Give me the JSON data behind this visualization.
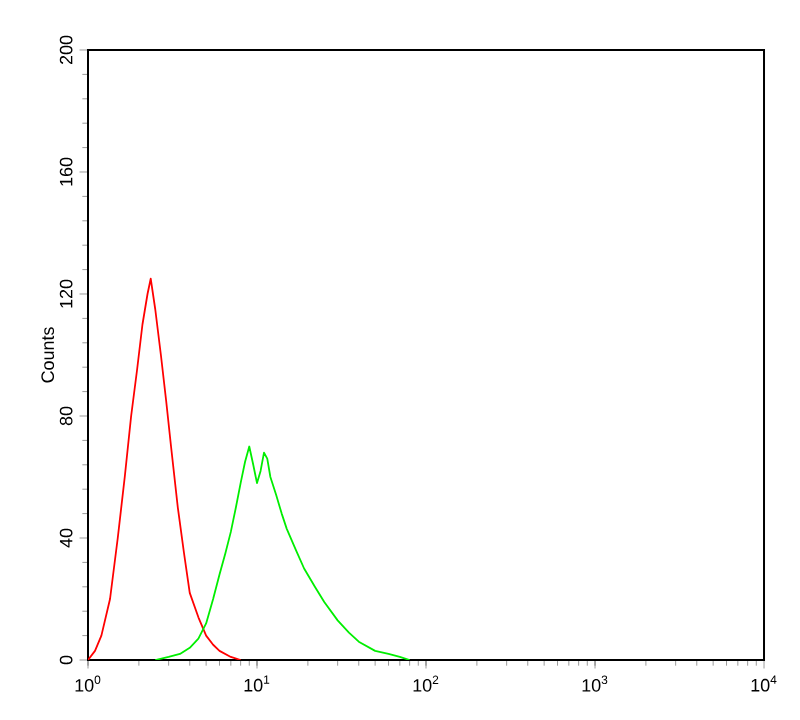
{
  "chart_data": {
    "type": "line",
    "ylabel": "Counts",
    "log": "x",
    "marker": "none",
    "line_style": "solid",
    "xlim": [
      1,
      10000
    ],
    "ylim": [
      0,
      200
    ],
    "xticks": [
      {
        "value": 1,
        "label": "10$^{0}$"
      },
      {
        "value": 10,
        "label": "10$^{1}$"
      },
      {
        "value": 100,
        "label": "10$^{2}$"
      },
      {
        "value": 1000,
        "label": "10$^{3}$"
      },
      {
        "value": 10000,
        "label": "10$^{4}$"
      }
    ],
    "yticks": [
      0,
      40,
      80,
      120,
      160,
      200
    ],
    "series": [
      {
        "color": "#ff0000",
        "x": [
          1.0,
          1.1,
          1.2,
          1.35,
          1.5,
          1.65,
          1.8,
          1.95,
          2.1,
          2.25,
          2.35,
          2.5,
          2.7,
          2.9,
          3.1,
          3.4,
          3.7,
          4.0,
          4.5,
          5.0,
          5.5,
          6.0,
          7.0,
          8.0
        ],
        "values": [
          0,
          3,
          8,
          20,
          40,
          60,
          80,
          95,
          110,
          120,
          125,
          115,
          100,
          85,
          70,
          50,
          35,
          22,
          14,
          8,
          5,
          3,
          1,
          0
        ]
      },
      {
        "color": "#00ee00",
        "x": [
          2.5,
          3,
          3.5,
          4,
          4.5,
          5,
          5.5,
          6,
          6.5,
          7,
          7.5,
          8,
          8.5,
          9,
          9.5,
          10,
          10.5,
          11,
          11.5,
          12,
          13,
          14,
          15,
          17,
          19,
          22,
          25,
          30,
          35,
          40,
          50,
          60,
          70,
          80
        ],
        "values": [
          0,
          1,
          2,
          4,
          7,
          12,
          20,
          28,
          35,
          42,
          50,
          58,
          65,
          70,
          64,
          58,
          62,
          68,
          66,
          60,
          54,
          48,
          43,
          36,
          30,
          24,
          19,
          13,
          9,
          6,
          3,
          2,
          1,
          0
        ]
      }
    ]
  }
}
